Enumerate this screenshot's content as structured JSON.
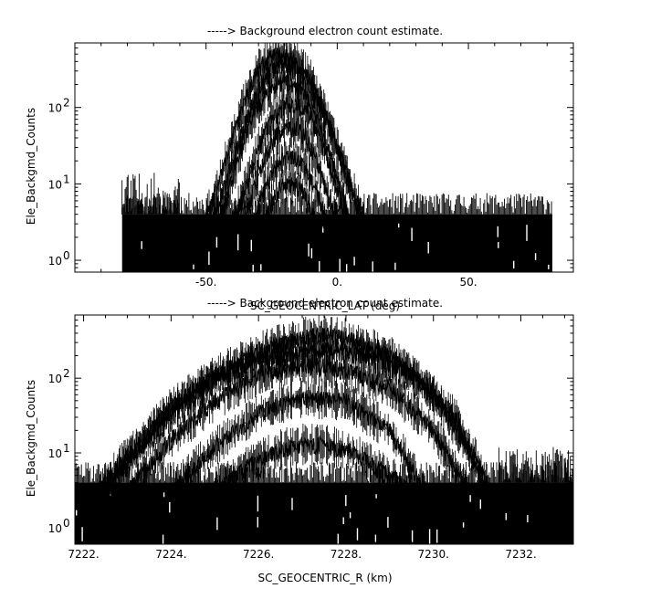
{
  "chart_data": [
    {
      "type": "line",
      "title": "-----> Background electron count estimate.",
      "xlabel": "SC_GEOCENTRIC_LAT (deg)",
      "ylabel": "Ele_Backgmd_Counts",
      "xlim": [
        -100,
        90
      ],
      "ylim": [
        0.7,
        700
      ],
      "yscale": "log",
      "x_ticks": [
        -50,
        0,
        50
      ],
      "x_tick_labels": [
        "-50.",
        "0.",
        "50."
      ],
      "y_ticks": [
        1,
        10,
        100
      ],
      "y_tick_labels": [
        "10",
        "10",
        "10"
      ],
      "y_tick_exponents": [
        "0",
        "1",
        "2"
      ],
      "grid": false,
      "noise_floor": {
        "x_range": [
          -82,
          82
        ],
        "range": [
          1,
          4
        ]
      },
      "noise_shoulder": {
        "x_range": [
          -82,
          -60
        ],
        "peak": 14
      },
      "series": [
        {
          "x": [
            -50,
            -45,
            -40,
            -35,
            -30,
            -25,
            -22,
            -18,
            -14,
            -10,
            -5,
            0,
            5,
            10
          ],
          "y": [
            3.5,
            10,
            40,
            130,
            320,
            480,
            500,
            460,
            360,
            220,
            90,
            30,
            10,
            3.5
          ]
        },
        {
          "x": [
            -48,
            -43,
            -38,
            -33,
            -28,
            -24,
            -20,
            -15,
            -10,
            -5,
            0,
            5,
            9
          ],
          "y": [
            3,
            9,
            32,
            100,
            240,
            360,
            400,
            330,
            200,
            90,
            30,
            9,
            3
          ]
        },
        {
          "x": [
            -45,
            -40,
            -35,
            -30,
            -25,
            -20,
            -15,
            -10,
            -5,
            0,
            5
          ],
          "y": [
            3,
            12,
            45,
            110,
            190,
            230,
            190,
            110,
            45,
            12,
            3
          ]
        },
        {
          "x": [
            -40,
            -35,
            -30,
            -25,
            -20,
            -15,
            -10,
            -5,
            0,
            4
          ],
          "y": [
            3,
            9,
            30,
            70,
            110,
            110,
            70,
            30,
            9,
            3
          ]
        },
        {
          "x": [
            -36,
            -32,
            -28,
            -24,
            -20,
            -16,
            -12,
            -8,
            -4,
            0
          ],
          "y": [
            3,
            8,
            20,
            40,
            55,
            55,
            40,
            20,
            8,
            3
          ]
        },
        {
          "x": [
            -32,
            -28,
            -24,
            -20,
            -16,
            -12,
            -8,
            -4
          ],
          "y": [
            3,
            8,
            16,
            22,
            22,
            16,
            8,
            3
          ]
        },
        {
          "x": [
            -28,
            -24,
            -20,
            -16,
            -12,
            -8
          ],
          "y": [
            3,
            7,
            10,
            10,
            7,
            3
          ]
        }
      ]
    },
    {
      "type": "line",
      "title": "-----> Background electron count estimate.",
      "xlabel": "SC_GEOCENTRIC_R (km)",
      "ylabel": "Ele_Backgmd_Counts",
      "xlim": [
        7221.8,
        7233.2
      ],
      "ylim": [
        0.6,
        700
      ],
      "yscale": "log",
      "x_ticks": [
        7222,
        7224,
        7226,
        7228,
        7230,
        7232
      ],
      "x_tick_labels": [
        "7222.",
        "7224.",
        "7226.",
        "7228.",
        "7230.",
        "7232."
      ],
      "y_ticks": [
        1,
        10,
        100
      ],
      "y_tick_labels": [
        "10",
        "10",
        "10"
      ],
      "y_tick_exponents": [
        "0",
        "1",
        "2"
      ],
      "grid": false,
      "noise_floor": {
        "x_range": [
          7221.8,
          7233.2
        ],
        "range": [
          0.7,
          4
        ]
      },
      "noise_shoulder": {
        "x_range": [
          7231.5,
          7233.2
        ],
        "peak": 12
      },
      "series": [
        {
          "x": [
            7222.3,
            7223,
            7224,
            7225,
            7226,
            7227,
            7227.5,
            7228,
            7229,
            7230,
            7231,
            7231.3
          ],
          "y": [
            3,
            9,
            40,
            110,
            230,
            350,
            380,
            340,
            200,
            60,
            8,
            3
          ]
        },
        {
          "x": [
            7222.5,
            7223,
            7224,
            7225,
            7226,
            7227,
            7227.7,
            7228.5,
            7229.5,
            7230.5,
            7231.2
          ],
          "y": [
            3,
            8,
            35,
            100,
            180,
            220,
            240,
            200,
            120,
            30,
            3
          ]
        },
        {
          "x": [
            7223,
            7224,
            7225,
            7226,
            7227,
            7228,
            7229,
            7230,
            7230.8
          ],
          "y": [
            3,
            15,
            50,
            110,
            150,
            130,
            75,
            20,
            3
          ]
        },
        {
          "x": [
            7224,
            7225,
            7226,
            7227,
            7228,
            7229,
            7229.8
          ],
          "y": [
            3,
            12,
            35,
            55,
            50,
            20,
            3
          ]
        },
        {
          "x": [
            7225,
            7225.8,
            7226.5,
            7227,
            7227.5,
            7228.2,
            7229,
            7229.5
          ],
          "y": [
            3,
            7,
            11,
            13,
            13,
            10,
            5,
            3
          ]
        }
      ]
    }
  ]
}
